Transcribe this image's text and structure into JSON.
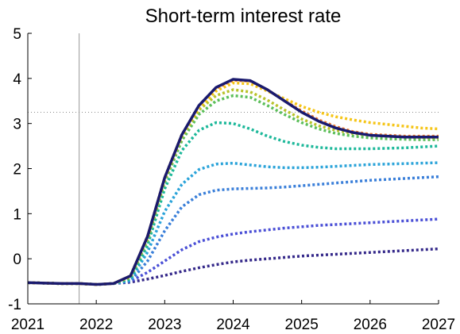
{
  "chart_data": {
    "type": "line",
    "title": "Short-term interest rate",
    "xlabel": "",
    "ylabel": "",
    "xlim": [
      2021,
      2027
    ],
    "ylim": [
      -1,
      5
    ],
    "xticks": [
      2021,
      2022,
      2023,
      2024,
      2025,
      2026,
      2027
    ],
    "yticks": [
      -1,
      0,
      1,
      2,
      3,
      4,
      5
    ],
    "grid": false,
    "legend": "none",
    "vertical_line_x": 2021.75,
    "horizontal_dotted_y": 3.25,
    "x": [
      2021.0,
      2021.25,
      2021.5,
      2021.75,
      2022.0,
      2022.25,
      2022.5,
      2022.75,
      2023.0,
      2023.25,
      2023.5,
      2023.75,
      2024.0,
      2024.25,
      2024.5,
      2024.75,
      2025.0,
      2025.25,
      2025.5,
      2025.75,
      2026.0,
      2026.25,
      2026.5,
      2026.75,
      2027.0
    ],
    "series": [
      {
        "color": "#1a1a6e",
        "style": "solid",
        "values": [
          -0.53,
          -0.54,
          -0.55,
          -0.55,
          -0.57,
          -0.55,
          -0.38,
          0.5,
          1.8,
          2.75,
          3.4,
          3.8,
          3.98,
          3.95,
          3.75,
          3.5,
          3.25,
          3.05,
          2.9,
          2.8,
          2.74,
          2.72,
          2.7,
          2.7,
          2.7
        ]
      },
      {
        "color": "#f5c518",
        "style": "dotted",
        "values": [
          -0.53,
          -0.54,
          -0.55,
          -0.55,
          -0.57,
          -0.55,
          -0.38,
          0.5,
          1.8,
          2.75,
          3.35,
          3.72,
          3.9,
          3.88,
          3.72,
          3.55,
          3.38,
          3.25,
          3.15,
          3.08,
          3.02,
          2.98,
          2.94,
          2.9,
          2.88
        ]
      },
      {
        "color": "#f07a2e",
        "style": "dotted",
        "values": [
          -0.53,
          -0.54,
          -0.55,
          -0.55,
          -0.57,
          -0.55,
          -0.38,
          0.5,
          1.8,
          2.75,
          3.38,
          3.78,
          3.96,
          3.94,
          3.75,
          3.5,
          3.28,
          3.08,
          2.93,
          2.82,
          2.76,
          2.74,
          2.72,
          2.72,
          2.72
        ]
      },
      {
        "color": "#b8c22a",
        "style": "dotted",
        "values": [
          -0.53,
          -0.54,
          -0.55,
          -0.55,
          -0.57,
          -0.55,
          -0.4,
          0.45,
          1.75,
          2.7,
          3.3,
          3.62,
          3.75,
          3.7,
          3.52,
          3.3,
          3.1,
          2.95,
          2.85,
          2.78,
          2.74,
          2.72,
          2.7,
          2.69,
          2.68
        ]
      },
      {
        "color": "#5cbf5a",
        "style": "dotted",
        "values": [
          -0.53,
          -0.54,
          -0.55,
          -0.55,
          -0.57,
          -0.55,
          -0.42,
          0.4,
          1.7,
          2.62,
          3.2,
          3.5,
          3.62,
          3.58,
          3.4,
          3.2,
          3.02,
          2.88,
          2.78,
          2.72,
          2.68,
          2.66,
          2.65,
          2.64,
          2.64
        ]
      },
      {
        "color": "#1db89a",
        "style": "dotted",
        "values": [
          -0.53,
          -0.54,
          -0.55,
          -0.55,
          -0.57,
          -0.55,
          -0.45,
          0.3,
          1.55,
          2.4,
          2.85,
          3.02,
          3.0,
          2.88,
          2.72,
          2.6,
          2.52,
          2.47,
          2.44,
          2.44,
          2.44,
          2.45,
          2.46,
          2.48,
          2.5
        ]
      },
      {
        "color": "#2aa3d9",
        "style": "dotted",
        "values": [
          -0.53,
          -0.54,
          -0.55,
          -0.55,
          -0.57,
          -0.55,
          -0.47,
          0.15,
          1.05,
          1.65,
          1.98,
          2.1,
          2.12,
          2.08,
          2.04,
          2.02,
          2.02,
          2.03,
          2.05,
          2.07,
          2.09,
          2.1,
          2.11,
          2.12,
          2.13
        ]
      },
      {
        "color": "#3a7fd9",
        "style": "dotted",
        "values": [
          -0.53,
          -0.54,
          -0.55,
          -0.55,
          -0.57,
          -0.55,
          -0.5,
          -0.05,
          0.62,
          1.15,
          1.42,
          1.52,
          1.55,
          1.56,
          1.57,
          1.59,
          1.62,
          1.65,
          1.68,
          1.71,
          1.74,
          1.76,
          1.78,
          1.8,
          1.82
        ]
      },
      {
        "color": "#4a4fd6",
        "style": "dotted",
        "values": [
          -0.53,
          -0.54,
          -0.55,
          -0.55,
          -0.57,
          -0.55,
          -0.5,
          -0.3,
          -0.05,
          0.2,
          0.38,
          0.48,
          0.55,
          0.6,
          0.64,
          0.68,
          0.71,
          0.74,
          0.76,
          0.78,
          0.8,
          0.82,
          0.84,
          0.86,
          0.88
        ]
      },
      {
        "color": "#35298a",
        "style": "dotted",
        "values": [
          -0.53,
          -0.54,
          -0.55,
          -0.55,
          -0.57,
          -0.55,
          -0.52,
          -0.45,
          -0.37,
          -0.28,
          -0.2,
          -0.13,
          -0.07,
          -0.03,
          0.0,
          0.03,
          0.06,
          0.08,
          0.1,
          0.12,
          0.14,
          0.16,
          0.18,
          0.2,
          0.22
        ]
      }
    ]
  }
}
